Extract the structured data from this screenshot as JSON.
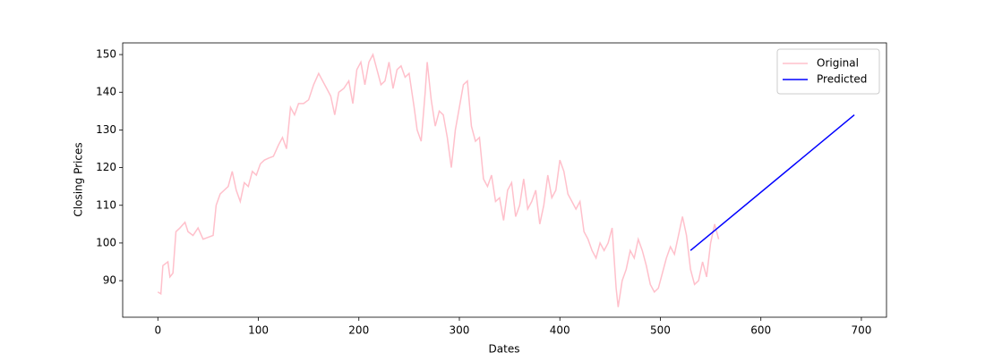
{
  "chart_data": {
    "type": "line",
    "xlabel": "Dates",
    "ylabel": "Closing Prices",
    "xlim": [
      -35,
      725
    ],
    "ylim": [
      80.3,
      153.1
    ],
    "xticks": [
      0,
      100,
      200,
      300,
      400,
      500,
      600,
      700
    ],
    "yticks": [
      90,
      100,
      110,
      120,
      130,
      140,
      150
    ],
    "legend": "upper right",
    "series": [
      {
        "name": "Original",
        "color": "#ffc0cb",
        "x": [
          0,
          3,
          5,
          10,
          12,
          15,
          18,
          22,
          27,
          30,
          35,
          40,
          45,
          50,
          55,
          58,
          62,
          66,
          70,
          74,
          78,
          82,
          86,
          90,
          94,
          98,
          102,
          106,
          110,
          115,
          120,
          124,
          128,
          132,
          136,
          140,
          145,
          150,
          155,
          160,
          164,
          168,
          172,
          176,
          180,
          185,
          190,
          194,
          198,
          202,
          206,
          210,
          214,
          218,
          222,
          226,
          230,
          234,
          238,
          242,
          246,
          250,
          255,
          258,
          262,
          266,
          268,
          272,
          276,
          280,
          284,
          288,
          292,
          296,
          300,
          304,
          308,
          312,
          316,
          320,
          324,
          328,
          332,
          336,
          340,
          344,
          348,
          352,
          356,
          360,
          364,
          368,
          372,
          376,
          380,
          384,
          388,
          392,
          396,
          400,
          404,
          408,
          412,
          416,
          420,
          424,
          428,
          432,
          436,
          440,
          444,
          448,
          452,
          456,
          458,
          462,
          466,
          470,
          474,
          478,
          482,
          486,
          490,
          494,
          498,
          502,
          506,
          510,
          514,
          518,
          522,
          526,
          530,
          534,
          538,
          542,
          546,
          550,
          554,
          558
        ],
        "values": [
          87,
          86.5,
          94,
          95,
          91,
          92,
          103,
          104,
          105.5,
          103,
          102,
          104,
          101,
          101.5,
          102,
          110,
          113,
          114,
          115,
          119,
          114,
          111,
          116,
          115,
          119,
          118,
          121,
          122,
          122.5,
          123,
          126,
          128,
          125,
          136,
          134,
          137,
          137,
          138,
          142,
          145,
          143,
          141,
          139,
          134,
          140,
          141,
          143,
          137,
          146,
          148,
          142,
          148,
          150,
          146,
          142,
          143,
          148,
          141,
          146,
          147,
          144,
          145,
          136,
          130,
          127,
          140,
          148,
          138,
          131,
          135,
          134,
          128,
          120,
          130,
          136,
          142,
          143,
          131,
          127,
          128,
          117,
          115,
          118,
          111,
          112,
          106,
          114,
          116,
          107,
          110,
          117,
          109,
          111,
          114,
          105,
          110,
          118,
          112,
          114,
          122,
          119,
          113,
          111,
          109,
          111,
          103,
          101,
          98,
          96,
          100,
          98,
          100,
          104,
          88,
          83,
          90,
          93,
          98,
          96,
          101,
          98,
          94,
          89,
          87,
          88,
          92,
          96,
          99,
          97,
          102,
          107,
          102,
          93,
          89,
          90,
          95,
          91,
          100,
          105,
          101
        ]
      },
      {
        "name": "Predicted",
        "color": "#0000ff",
        "x": [
          530,
          693
        ],
        "values": [
          98,
          134
        ]
      }
    ]
  }
}
